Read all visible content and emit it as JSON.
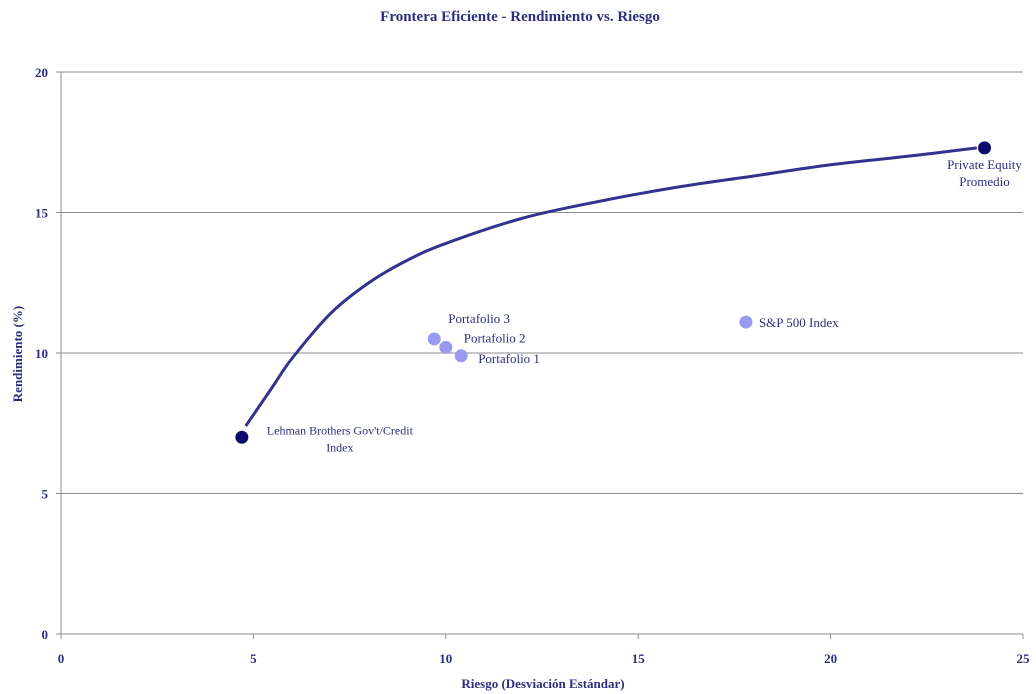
{
  "chart_data": {
    "type": "scatter",
    "title": "Frontera Eficiente - Rendimiento vs. Riesgo",
    "xlabel": "Riesgo (Desviación Estándar)",
    "ylabel": "Rendimiento (%)",
    "xlim": [
      0,
      25
    ],
    "ylim": [
      0,
      20
    ],
    "xticks": [
      "0",
      "5",
      "10",
      "15",
      "20",
      "25"
    ],
    "yticks": [
      "0",
      "5",
      "10",
      "15",
      "20"
    ],
    "grid": "horizontal",
    "colors": {
      "text": "#2e2e7f",
      "dark_point": "#0c0c6e",
      "light_point": "#9999ee",
      "curve": "#33338f"
    },
    "points": [
      {
        "name": "Lehman Brothers Gov't/Credit Index",
        "label_lines": [
          "Lehman Brothers Gov't/Credit",
          "Index"
        ],
        "x": 4.7,
        "y": 7.0,
        "style": "dark"
      },
      {
        "name": "Private Equity Promedio",
        "label_lines": [
          "Private Equity",
          "Promedio"
        ],
        "x": 24.0,
        "y": 17.3,
        "style": "dark"
      },
      {
        "name": "Portafolio 3",
        "label_lines": [
          "Portafolio 3"
        ],
        "x": 9.7,
        "y": 10.5,
        "style": "light"
      },
      {
        "name": "Portafolio 2",
        "label_lines": [
          "Portafolio 2"
        ],
        "x": 10.0,
        "y": 10.2,
        "style": "light"
      },
      {
        "name": "Portafolio 1",
        "label_lines": [
          "Portafolio 1"
        ],
        "x": 10.4,
        "y": 9.9,
        "style": "light"
      },
      {
        "name": "S&P 500 Index",
        "label_lines": [
          "S&P 500 Index"
        ],
        "x": 17.8,
        "y": 11.1,
        "style": "light"
      }
    ],
    "frontier_curve": {
      "x": [
        4.8,
        5.5,
        6.0,
        7.0,
        8.0,
        9.0,
        10.0,
        12.0,
        14.0,
        16.0,
        18.0,
        20.0,
        22.0,
        23.8
      ],
      "y": [
        7.4,
        8.8,
        9.8,
        11.4,
        12.5,
        13.3,
        13.9,
        14.8,
        15.4,
        15.9,
        16.3,
        16.7,
        17.0,
        17.3
      ]
    }
  }
}
